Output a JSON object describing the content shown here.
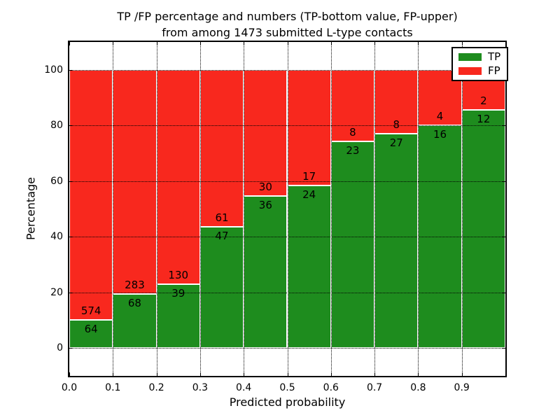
{
  "figure_title": {
    "line1": "TP /FP percentage and numbers (TP-bottom value, FP-upper)",
    "line2": "from among 1473 submitted L-type contacts"
  },
  "chart_data": {
    "type": "bar",
    "stacked": true,
    "title": "TP /FP percentage and numbers (TP-bottom value, FP-upper) from among 1473 submitted L-type contacts",
    "xlabel": "Predicted probability",
    "ylabel": "Percentage",
    "xlim": [
      0.0,
      1.0
    ],
    "ylim": [
      -10,
      110
    ],
    "grid": true,
    "legend_position": "upper right",
    "total_submitted": 1473,
    "bin_edges": [
      0.0,
      0.1,
      0.2,
      0.3,
      0.4,
      0.5,
      0.6,
      0.7,
      0.8,
      0.9,
      1.0
    ],
    "x_ticks": [
      "0.0",
      "0.1",
      "0.2",
      "0.3",
      "0.4",
      "0.5",
      "0.6",
      "0.7",
      "0.8",
      "0.9"
    ],
    "y_ticks": [
      "0",
      "20",
      "40",
      "60",
      "80",
      "100"
    ],
    "series": [
      {
        "name": "TP",
        "color": "#1E8C1E",
        "counts": [
          64,
          68,
          39,
          47,
          36,
          24,
          23,
          27,
          16,
          12
        ]
      },
      {
        "name": "FP",
        "color": "#F8281E",
        "counts": [
          574,
          283,
          130,
          61,
          30,
          17,
          8,
          8,
          4,
          2
        ]
      }
    ],
    "tp_percent_of_bin": [
      10.0,
      19.4,
      23.1,
      43.5,
      54.5,
      58.5,
      74.2,
      77.1,
      80.0,
      85.7
    ]
  }
}
